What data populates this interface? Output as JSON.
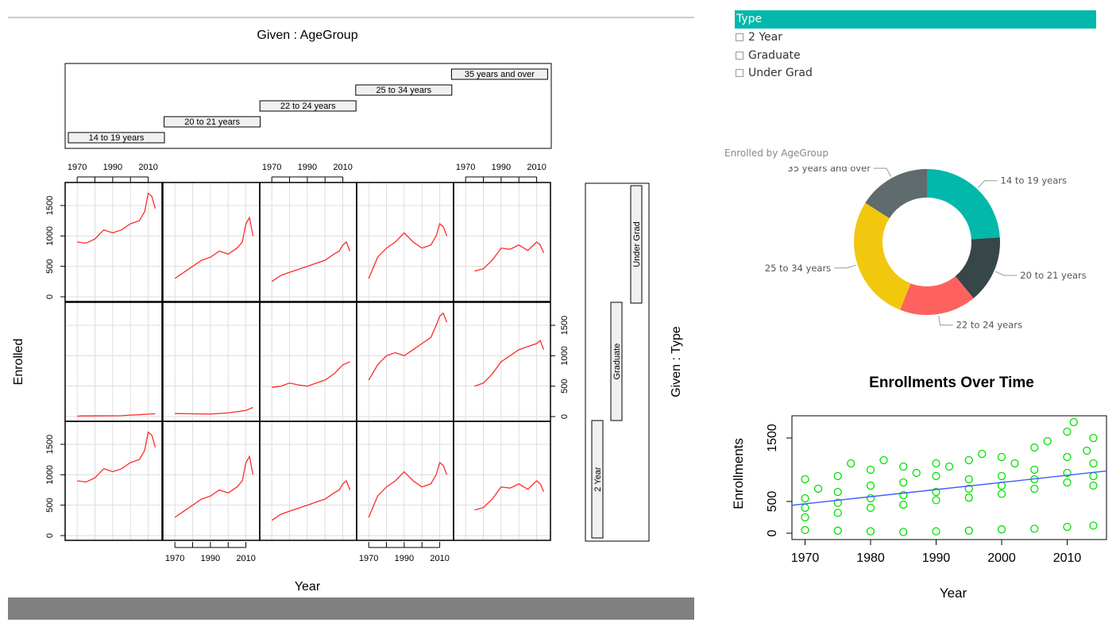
{
  "coplot": {
    "title": "Given : AgeGroup",
    "xlabel": "Year",
    "ylabel": "Enrolled",
    "right_label": "Given : Type",
    "age_groups": [
      "14 to 19 years",
      "20 to 21 years",
      "22 to 24 years",
      "25 to 34 years",
      "35 years and over"
    ],
    "types": [
      "2 Year",
      "Graduate",
      "Under Grad"
    ],
    "x_ticks": [
      "1970",
      "1990",
      "2010"
    ],
    "y_ticks": [
      "0",
      "500",
      "1000",
      "1500"
    ]
  },
  "slicer": {
    "header": "Type",
    "items": [
      "2 Year",
      "Graduate",
      "Under Grad"
    ]
  },
  "donut": {
    "title": "Enrolled by AgeGroup",
    "labels": [
      "14 to 19 years",
      "20 to 21 years",
      "22 to 24 years",
      "25 to 34 years",
      "35 years and over"
    ],
    "colors": [
      "#01B8AA",
      "#374649",
      "#FD625E",
      "#F2C80F",
      "#5F6B6D"
    ]
  },
  "chart_data": [
    {
      "type": "line",
      "title": "Given : AgeGroup",
      "xlabel": "Year",
      "ylabel": "Enrolled",
      "ylim": [
        0,
        1800
      ],
      "panels": [
        {
          "row": "Under Grad",
          "col": "14 to 19 years",
          "x": [
            1970,
            1975,
            1980,
            1985,
            1990,
            1995,
            2000,
            2005,
            2008,
            2010,
            2012,
            2014
          ],
          "y": [
            900,
            880,
            950,
            1100,
            1050,
            1100,
            1200,
            1250,
            1400,
            1700,
            1650,
            1450
          ]
        },
        {
          "row": "Under Grad",
          "col": "20 to 21 years",
          "x": [
            1970,
            1975,
            1980,
            1985,
            1990,
            1995,
            2000,
            2005,
            2008,
            2010,
            2012,
            2014
          ],
          "y": [
            300,
            400,
            500,
            600,
            650,
            750,
            700,
            800,
            900,
            1200,
            1300,
            1000
          ]
        },
        {
          "row": "Under Grad",
          "col": "22 to 24 years",
          "x": [
            1970,
            1975,
            1980,
            1985,
            1990,
            1995,
            2000,
            2005,
            2008,
            2010,
            2012,
            2014
          ],
          "y": [
            250,
            350,
            400,
            450,
            500,
            550,
            600,
            700,
            750,
            850,
            900,
            750
          ]
        },
        {
          "row": "Under Grad",
          "col": "25 to 34 years",
          "x": [
            1970,
            1975,
            1980,
            1985,
            1990,
            1995,
            2000,
            2005,
            2008,
            2010,
            2012,
            2014
          ],
          "y": [
            300,
            650,
            800,
            900,
            1050,
            900,
            800,
            850,
            1000,
            1200,
            1150,
            1000
          ]
        },
        {
          "row": "Under Grad",
          "col": "35 years and over",
          "x": [
            1975,
            1980,
            1985,
            1990,
            1995,
            2000,
            2005,
            2010,
            2012,
            2014
          ],
          "y": [
            420,
            460,
            600,
            800,
            780,
            850,
            760,
            900,
            850,
            720
          ]
        },
        {
          "row": "Graduate",
          "col": "14 to 19 years",
          "x": [
            1970,
            1972,
            1995,
            2000,
            2005,
            2010,
            2014
          ],
          "y": [
            5,
            10,
            15,
            25,
            30,
            40,
            45
          ]
        },
        {
          "row": "Graduate",
          "col": "20 to 21 years",
          "x": [
            1970,
            1980,
            1990,
            2000,
            2005,
            2010,
            2014
          ],
          "y": [
            50,
            45,
            40,
            60,
            80,
            100,
            150
          ]
        },
        {
          "row": "Graduate",
          "col": "22 to 24 years",
          "x": [
            1970,
            1975,
            1980,
            1985,
            1990,
            1995,
            2000,
            2005,
            2010,
            2014
          ],
          "y": [
            480,
            500,
            550,
            520,
            500,
            550,
            600,
            700,
            850,
            900
          ]
        },
        {
          "row": "Graduate",
          "col": "25 to 34 years",
          "x": [
            1970,
            1975,
            1980,
            1985,
            1990,
            1995,
            2000,
            2005,
            2008,
            2010,
            2012,
            2014
          ],
          "y": [
            600,
            850,
            1000,
            1050,
            1000,
            1100,
            1200,
            1300,
            1500,
            1650,
            1700,
            1550
          ]
        },
        {
          "row": "Graduate",
          "col": "35 years and over",
          "x": [
            1975,
            1980,
            1985,
            1990,
            1995,
            2000,
            2005,
            2010,
            2012,
            2014
          ],
          "y": [
            500,
            550,
            700,
            900,
            1000,
            1100,
            1150,
            1200,
            1250,
            1100
          ]
        },
        {
          "row": "2 Year",
          "col": "14 to 19 years",
          "x": [
            1970,
            1975,
            1980,
            1985,
            1990,
            1995,
            2000,
            2005,
            2008,
            2010,
            2012,
            2014
          ],
          "y": [
            900,
            880,
            950,
            1100,
            1050,
            1100,
            1200,
            1250,
            1400,
            1700,
            1650,
            1450
          ]
        },
        {
          "row": "2 Year",
          "col": "20 to 21 years",
          "x": [
            1970,
            1975,
            1980,
            1985,
            1990,
            1995,
            2000,
            2005,
            2008,
            2010,
            2012,
            2014
          ],
          "y": [
            300,
            400,
            500,
            600,
            650,
            750,
            700,
            800,
            900,
            1200,
            1300,
            1000
          ]
        },
        {
          "row": "2 Year",
          "col": "22 to 24 years",
          "x": [
            1970,
            1975,
            1980,
            1985,
            1990,
            1995,
            2000,
            2005,
            2008,
            2010,
            2012,
            2014
          ],
          "y": [
            250,
            350,
            400,
            450,
            500,
            550,
            600,
            700,
            750,
            850,
            900,
            750
          ]
        },
        {
          "row": "2 Year",
          "col": "25 to 34 years",
          "x": [
            1970,
            1975,
            1980,
            1985,
            1990,
            1995,
            2000,
            2005,
            2008,
            2010,
            2012,
            2014
          ],
          "y": [
            300,
            650,
            800,
            900,
            1050,
            900,
            800,
            850,
            1000,
            1200,
            1150,
            1000
          ]
        },
        {
          "row": "2 Year",
          "col": "35 years and over",
          "x": [
            1975,
            1980,
            1985,
            1990,
            1995,
            2000,
            2005,
            2010,
            2012,
            2014
          ],
          "y": [
            420,
            460,
            600,
            800,
            780,
            850,
            760,
            900,
            850,
            720
          ]
        }
      ]
    },
    {
      "type": "pie",
      "title": "Enrolled by AgeGroup",
      "labels": [
        "14 to 19 years",
        "20 to 21 years",
        "22 to 24 years",
        "25 to 34 years",
        "35 years and over"
      ],
      "values": [
        24,
        15,
        17,
        28,
        16
      ]
    },
    {
      "type": "scatter",
      "title": "Enrollments Over Time",
      "xlabel": "Year",
      "ylabel": "Enrollments",
      "xlim": [
        1968,
        2016
      ],
      "ylim": [
        -100,
        1850
      ],
      "x_ticks": [
        1970,
        1980,
        1990,
        2000,
        2010
      ],
      "y_ticks": [
        0,
        500,
        1500
      ],
      "series": [
        {
          "values": [
            [
              1970,
              50
            ],
            [
              1975,
              40
            ],
            [
              1980,
              30
            ],
            [
              1985,
              20
            ],
            [
              1990,
              30
            ],
            [
              1995,
              40
            ],
            [
              2000,
              60
            ],
            [
              2005,
              70
            ],
            [
              2010,
              100
            ],
            [
              2014,
              120
            ],
            [
              1970,
              250
            ],
            [
              1975,
              320
            ],
            [
              1980,
              400
            ],
            [
              1985,
              450
            ],
            [
              1990,
              520
            ],
            [
              1995,
              560
            ],
            [
              2000,
              620
            ],
            [
              2005,
              700
            ],
            [
              2010,
              800
            ],
            [
              2014,
              750
            ],
            [
              1970,
              400
            ],
            [
              1975,
              480
            ],
            [
              1980,
              550
            ],
            [
              1985,
              600
            ],
            [
              1990,
              650
            ],
            [
              1995,
              700
            ],
            [
              2000,
              750
            ],
            [
              2005,
              850
            ],
            [
              2010,
              950
            ],
            [
              2014,
              900
            ],
            [
              1970,
              550
            ],
            [
              1975,
              650
            ],
            [
              1980,
              750
            ],
            [
              1985,
              800
            ],
            [
              1990,
              900
            ],
            [
              1995,
              850
            ],
            [
              2000,
              900
            ],
            [
              2005,
              1000
            ],
            [
              2010,
              1200
            ],
            [
              2014,
              1100
            ],
            [
              1970,
              850
            ],
            [
              1975,
              900
            ],
            [
              1980,
              1000
            ],
            [
              1985,
              1050
            ],
            [
              1990,
              1100
            ],
            [
              1995,
              1150
            ],
            [
              2000,
              1200
            ],
            [
              2005,
              1350
            ],
            [
              2010,
              1600
            ],
            [
              2014,
              1500
            ],
            [
              1972,
              700
            ],
            [
              1977,
              1100
            ],
            [
              1982,
              1150
            ],
            [
              1987,
              950
            ],
            [
              1992,
              1050
            ],
            [
              1997,
              1250
            ],
            [
              2002,
              1100
            ],
            [
              2007,
              1450
            ],
            [
              2011,
              1750
            ],
            [
              2013,
              1300
            ]
          ]
        },
        {
          "name": "",
          "line": [
            [
              1968,
              440
            ],
            [
              2016,
              980
            ]
          ]
        }
      ]
    }
  ]
}
